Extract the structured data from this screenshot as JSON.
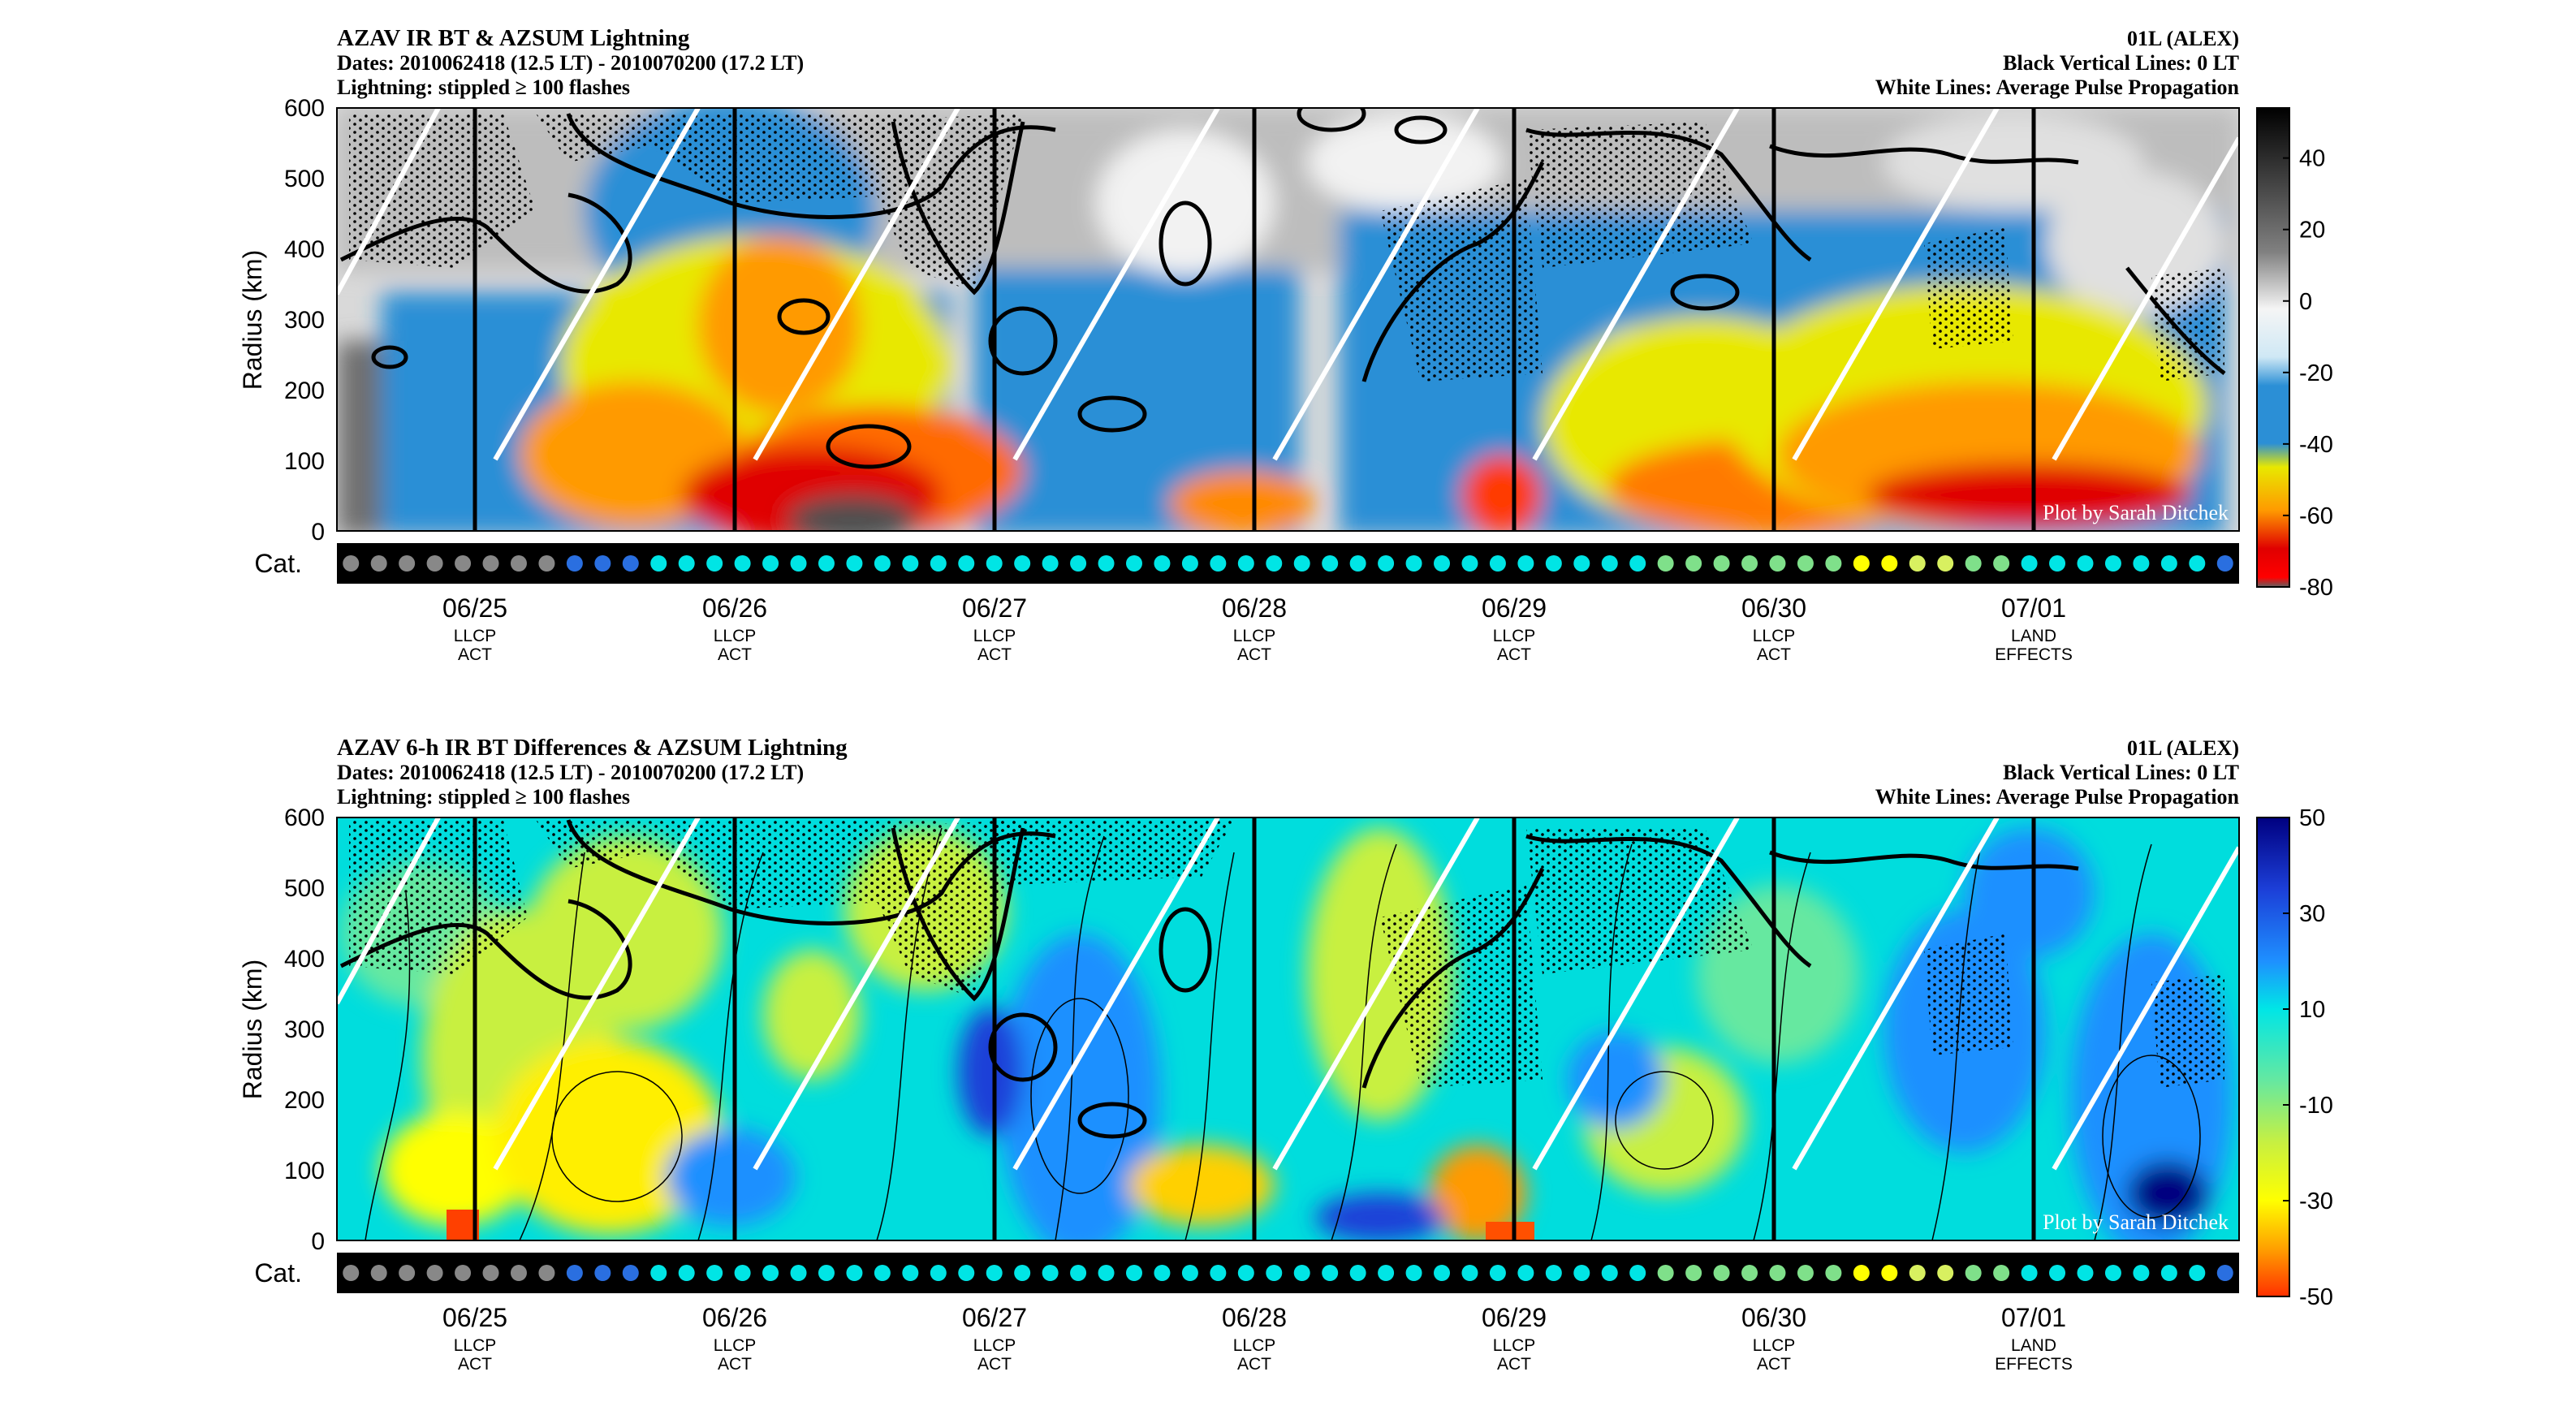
{
  "chart_data": [
    {
      "type": "heatmap",
      "title": "AZAV IR BT & AZSUM Lightning",
      "subtitle_lines": [
        "Dates: 2010062418 (12.5 LT) - 2010070200 (17.2 LT)",
        "Lightning: stippled ≥ 100 flashes"
      ],
      "right_lines": [
        "01L (ALEX)",
        "Black Vertical Lines: 0 LT",
        "White Lines: Average Pulse Propagation"
      ],
      "ylabel": "Radius (km)",
      "ylim": [
        0,
        600
      ],
      "yticks": [
        "0",
        "100",
        "200",
        "300",
        "400",
        "500",
        "600"
      ],
      "x_ticks": [
        {
          "date": "06/25",
          "line1": "LLCP",
          "line2": "ACT"
        },
        {
          "date": "06/26",
          "line1": "LLCP",
          "line2": "ACT"
        },
        {
          "date": "06/27",
          "line1": "LLCP",
          "line2": "ACT"
        },
        {
          "date": "06/28",
          "line1": "LLCP",
          "line2": "ACT"
        },
        {
          "date": "06/29",
          "line1": "LLCP",
          "line2": "ACT"
        },
        {
          "date": "06/30",
          "line1": "LLCP",
          "line2": "ACT"
        },
        {
          "date": "07/01",
          "line1": "LAND",
          "line2": "EFFECTS"
        }
      ],
      "colorbar": {
        "labels": [
          "40",
          "20",
          "0",
          "-20",
          "-40",
          "-60",
          "-80"
        ],
        "range": [
          -80,
          54
        ]
      },
      "credit": "Plot by Sarah Ditchek",
      "cat_label": "Cat.",
      "cat_colors": [
        "#888888",
        "#888888",
        "#888888",
        "#888888",
        "#888888",
        "#888888",
        "#888888",
        "#888888",
        "#2a6fe0",
        "#2a6fe0",
        "#2a6fe0",
        "#00e5e5",
        "#00e5e5",
        "#00e5e5",
        "#00e5e5",
        "#00e5e5",
        "#00e5e5",
        "#00e5e5",
        "#00e5e5",
        "#00e5e5",
        "#00e5e5",
        "#00e5e5",
        "#00e5e5",
        "#00e5e5",
        "#00e5e5",
        "#00e5e5",
        "#00e5e5",
        "#00e5e5",
        "#00e5e5",
        "#00e5e5",
        "#00e5e5",
        "#00e5e5",
        "#00e5e5",
        "#00e5e5",
        "#00e5e5",
        "#00e5e5",
        "#00e5e5",
        "#00e5e5",
        "#00e5e5",
        "#00e5e5",
        "#00e5e5",
        "#00e5e5",
        "#00e5e5",
        "#00e5e5",
        "#00e5e5",
        "#00e5e5",
        "#00e5e5",
        "#7fe08a",
        "#7fe08a",
        "#7fe08a",
        "#7fe08a",
        "#7fe08a",
        "#7fe08a",
        "#7fe08a",
        "#ffff00",
        "#ffff00",
        "#d8f060",
        "#d8f060",
        "#7fe08a",
        "#7fe08a",
        "#00e5e5",
        "#00e5e5",
        "#00e5e5",
        "#00e5e5",
        "#00e5e5",
        "#00e5e5",
        "#00e5e5",
        "#2a6fe0"
      ]
    },
    {
      "type": "heatmap",
      "title": "AZAV 6-h IR BT Differences & AZSUM Lightning",
      "subtitle_lines": [
        "Dates: 2010062418 (12.5 LT) - 2010070200 (17.2 LT)",
        "Lightning: stippled ≥ 100 flashes"
      ],
      "right_lines": [
        "01L (ALEX)",
        "Black Vertical Lines: 0 LT",
        "White Lines: Average Pulse Propagation"
      ],
      "ylabel": "Radius (km)",
      "ylim": [
        0,
        600
      ],
      "yticks": [
        "0",
        "100",
        "200",
        "300",
        "400",
        "500",
        "600"
      ],
      "x_ticks": [
        {
          "date": "06/25",
          "line1": "LLCP",
          "line2": "ACT"
        },
        {
          "date": "06/26",
          "line1": "LLCP",
          "line2": "ACT"
        },
        {
          "date": "06/27",
          "line1": "LLCP",
          "line2": "ACT"
        },
        {
          "date": "06/28",
          "line1": "LLCP",
          "line2": "ACT"
        },
        {
          "date": "06/29",
          "line1": "LLCP",
          "line2": "ACT"
        },
        {
          "date": "06/30",
          "line1": "LLCP",
          "line2": "ACT"
        },
        {
          "date": "07/01",
          "line1": "LAND",
          "line2": "EFFECTS"
        }
      ],
      "colorbar": {
        "labels": [
          "50",
          "30",
          "10",
          "-10",
          "-30",
          "-50"
        ],
        "range": [
          -50,
          50
        ]
      },
      "credit": "Plot by Sarah Ditchek",
      "cat_label": "Cat.",
      "cat_colors": [
        "#888888",
        "#888888",
        "#888888",
        "#888888",
        "#888888",
        "#888888",
        "#888888",
        "#888888",
        "#2a6fe0",
        "#2a6fe0",
        "#2a6fe0",
        "#00e5e5",
        "#00e5e5",
        "#00e5e5",
        "#00e5e5",
        "#00e5e5",
        "#00e5e5",
        "#00e5e5",
        "#00e5e5",
        "#00e5e5",
        "#00e5e5",
        "#00e5e5",
        "#00e5e5",
        "#00e5e5",
        "#00e5e5",
        "#00e5e5",
        "#00e5e5",
        "#00e5e5",
        "#00e5e5",
        "#00e5e5",
        "#00e5e5",
        "#00e5e5",
        "#00e5e5",
        "#00e5e5",
        "#00e5e5",
        "#00e5e5",
        "#00e5e5",
        "#00e5e5",
        "#00e5e5",
        "#00e5e5",
        "#00e5e5",
        "#00e5e5",
        "#00e5e5",
        "#00e5e5",
        "#00e5e5",
        "#00e5e5",
        "#00e5e5",
        "#7fe08a",
        "#7fe08a",
        "#7fe08a",
        "#7fe08a",
        "#7fe08a",
        "#7fe08a",
        "#7fe08a",
        "#ffff00",
        "#ffff00",
        "#d8f060",
        "#d8f060",
        "#7fe08a",
        "#7fe08a",
        "#00e5e5",
        "#00e5e5",
        "#00e5e5",
        "#00e5e5",
        "#00e5e5",
        "#00e5e5",
        "#00e5e5",
        "#2a6fe0"
      ]
    }
  ]
}
